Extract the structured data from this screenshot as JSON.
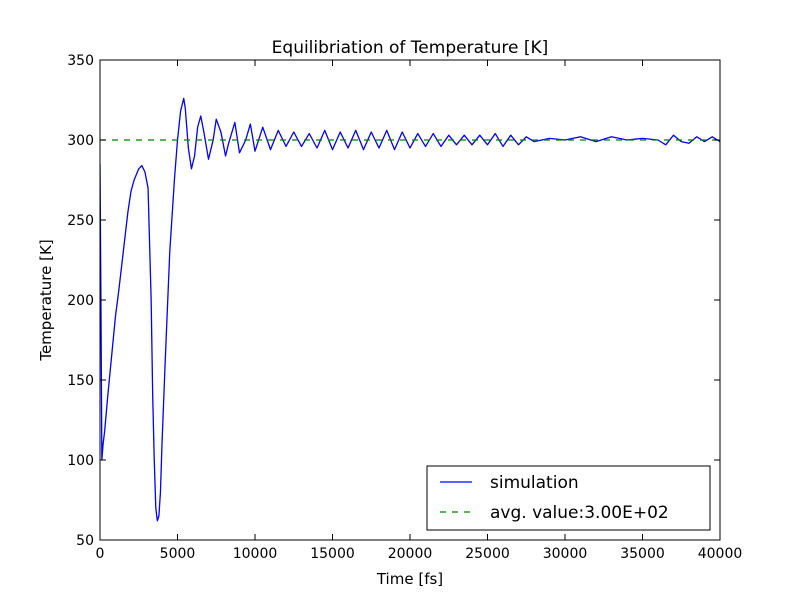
{
  "chart_data": {
    "type": "line",
    "title": "Equilibriation of Temperature [K]",
    "xlabel": "Time [fs]",
    "ylabel": "Temperature [K]",
    "xlim": [
      0,
      40000
    ],
    "ylim": [
      50,
      350
    ],
    "xticks": [
      0,
      5000,
      10000,
      15000,
      20000,
      25000,
      30000,
      35000,
      40000
    ],
    "yticks": [
      50,
      100,
      150,
      200,
      250,
      300,
      350
    ],
    "grid": false,
    "legend_position": "lower-right",
    "series": [
      {
        "name": "simulation",
        "style": "solid",
        "color": "#0000ff",
        "x": [
          0,
          60,
          120,
          200,
          300,
          500,
          800,
          1000,
          1200,
          1500,
          1800,
          2000,
          2200,
          2500,
          2700,
          2900,
          3100,
          3300,
          3400,
          3500,
          3600,
          3700,
          3800,
          3900,
          4000,
          4200,
          4500,
          4800,
          5000,
          5200,
          5400,
          5500,
          5700,
          5900,
          6100,
          6300,
          6500,
          6700,
          7000,
          7300,
          7500,
          7800,
          8100,
          8300,
          8700,
          9000,
          9400,
          9700,
          10000,
          10500,
          11000,
          11500,
          12000,
          12500,
          13000,
          13500,
          14000,
          14500,
          15000,
          15500,
          16000,
          16500,
          17000,
          17500,
          18000,
          18500,
          19000,
          19500,
          20000,
          20500,
          21000,
          21500,
          22000,
          22500,
          23000,
          23500,
          24000,
          24500,
          25000,
          25500,
          26000,
          26500,
          27000,
          27500,
          28000,
          29000,
          30000,
          31000,
          32000,
          33000,
          34000,
          35000,
          36000,
          36500,
          37000,
          37500,
          38000,
          38500,
          39000,
          39500,
          40000
        ],
        "y": [
          285,
          200,
          100,
          110,
          118,
          140,
          170,
          190,
          205,
          230,
          255,
          268,
          275,
          282,
          284,
          280,
          270,
          200,
          140,
          100,
          70,
          62,
          65,
          80,
          110,
          160,
          230,
          275,
          300,
          318,
          326,
          320,
          295,
          282,
          290,
          308,
          315,
          305,
          288,
          300,
          313,
          305,
          290,
          298,
          311,
          292,
          300,
          310,
          293,
          308,
          294,
          306,
          296,
          305,
          296,
          304,
          295,
          306,
          294,
          305,
          295,
          306,
          294,
          305,
          295,
          306,
          294,
          305,
          295,
          304,
          296,
          304,
          296,
          303,
          297,
          303,
          297,
          303,
          297,
          304,
          296,
          303,
          297,
          302,
          299,
          301,
          300,
          302,
          299,
          302,
          300,
          301,
          300,
          297,
          303,
          299,
          298,
          302,
          299,
          302,
          299
        ]
      },
      {
        "name": "avg. value:3.00E+02",
        "style": "dashed",
        "color": "#008000",
        "x": [
          0,
          40000
        ],
        "y": [
          300,
          300
        ]
      }
    ]
  }
}
